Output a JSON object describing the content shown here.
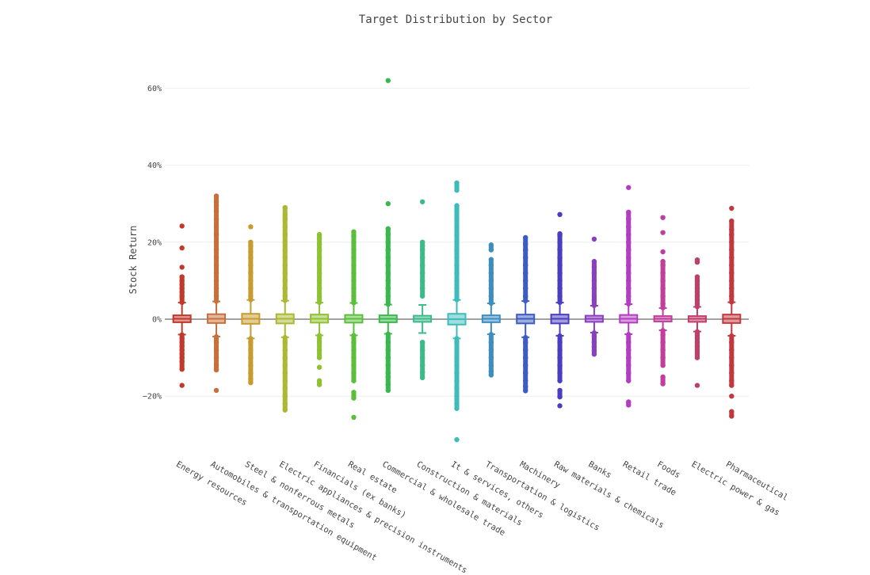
{
  "chart_data": {
    "type": "box",
    "title": "Target Distribution by Sector",
    "xlabel": "",
    "ylabel": "Stock Return",
    "ylim": [
      -35,
      67
    ],
    "y_ticks": [
      -20,
      0,
      20,
      40,
      60
    ],
    "y_tick_labels": [
      "−20%",
      "0%",
      "20%",
      "40%",
      "60%"
    ],
    "grid": true,
    "legend": "none",
    "categories": [
      "Energy resources",
      "Automobiles & transportation equipment",
      "Steel & nonferrous metals",
      "Electric appliances & precision instruments",
      "Financials (ex banks)",
      "Real estate",
      "Commercial & wholesale trade",
      "Construction & materials",
      "It & services, others",
      "Transportation & logistics",
      "Machinery",
      "Raw materials & chemicals",
      "Banks",
      "Retail trade",
      "Foods",
      "Electric power & gas",
      "Pharmaceutical"
    ],
    "colors": [
      "#c0392b",
      "#c8703b",
      "#c89b2e",
      "#aab832",
      "#8ec233",
      "#5cbf3c",
      "#39b84e",
      "#3dba8a",
      "#3ebcbc",
      "#3d8ec0",
      "#3e5cc0",
      "#4a3ec0",
      "#8a3ec0",
      "#b13ec0",
      "#c03e9c",
      "#c03e6a",
      "#c0393f"
    ],
    "boxes": [
      {
        "q1": -0.8,
        "median": 0.1,
        "q3": 1.0,
        "whisker_low": -4,
        "whisker_high": 4.3,
        "outliers_high": [
          6,
          7,
          8,
          9,
          10,
          11,
          13.5,
          18.5,
          24.2
        ],
        "outliers_low": [
          -5,
          -6,
          -7,
          -8,
          -9,
          -10,
          -11,
          -13,
          -17.2
        ]
      },
      {
        "q1": -1.0,
        "median": 0.1,
        "q3": 1.3,
        "whisker_low": -4.5,
        "whisker_high": 4.6,
        "outliers_high": [
          6,
          8,
          10,
          12,
          14,
          16,
          18,
          20,
          22,
          24,
          26,
          28,
          29.5,
          30.5,
          32
        ],
        "outliers_low": [
          -6,
          -8,
          -10,
          -12,
          -13.2,
          -18.5
        ]
      },
      {
        "q1": -1.2,
        "median": 0.1,
        "q3": 1.4,
        "whisker_low": -5,
        "whisker_high": 5,
        "outliers_high": [
          6,
          8,
          10,
          12,
          14,
          16,
          17.5,
          19,
          20,
          24
        ],
        "outliers_low": [
          -6,
          -8,
          -10,
          -12,
          -14,
          -15.5,
          -16.5
        ]
      },
      {
        "q1": -1.1,
        "median": 0.1,
        "q3": 1.3,
        "whisker_low": -4.7,
        "whisker_high": 4.8,
        "outliers_high": [
          6,
          8,
          10,
          12,
          14,
          16,
          18,
          20,
          22,
          24,
          26,
          27,
          29
        ],
        "outliers_low": [
          -6,
          -8,
          -10,
          -12,
          -14,
          -16,
          -18,
          -20,
          -22,
          -23.6
        ]
      },
      {
        "q1": -0.9,
        "median": 0.1,
        "q3": 1.2,
        "whisker_low": -4.2,
        "whisker_high": 4.3,
        "outliers_high": [
          6,
          8,
          10,
          12,
          14,
          16,
          18,
          19.5,
          21,
          22
        ],
        "outliers_low": [
          -6,
          -8,
          -10,
          -12.5,
          -16,
          -17
        ]
      },
      {
        "q1": -0.9,
        "median": 0.1,
        "q3": 1.1,
        "whisker_low": -4.2,
        "whisker_high": 4.2,
        "outliers_high": [
          6,
          8,
          10,
          12,
          14,
          16,
          18,
          20,
          21.5,
          22.7
        ],
        "outliers_low": [
          -6,
          -8,
          -10,
          -12,
          -14,
          -16,
          -19,
          -20.5,
          -25.5
        ]
      },
      {
        "q1": -0.8,
        "median": 0.1,
        "q3": 1.0,
        "whisker_low": -3.8,
        "whisker_high": 3.8,
        "outliers_high": [
          6,
          8,
          10,
          12,
          14,
          16,
          18,
          20,
          22,
          23.5,
          30,
          62
        ],
        "outliers_low": [
          -6,
          -8,
          -10,
          -12,
          -14,
          -15,
          -17,
          -18.5
        ]
      },
      {
        "q1": -0.7,
        "median": 0.1,
        "q3": 0.9,
        "whisker_low": -3.6,
        "whisker_high": 3.7,
        "outliers_high": [
          6,
          8,
          10,
          12,
          14,
          16,
          18,
          19,
          20,
          30.5
        ],
        "outliers_low": [
          -6,
          -8,
          -10,
          -12,
          -13.8,
          -15.2
        ]
      },
      {
        "q1": -1.4,
        "median": 0.0,
        "q3": 1.4,
        "whisker_low": -5,
        "whisker_high": 5,
        "outliers_high": [
          6,
          8,
          10,
          12,
          14,
          16,
          18,
          20,
          22,
          24,
          26,
          28,
          29.5,
          33.5,
          35.4
        ],
        "outliers_low": [
          -6,
          -8,
          -10,
          -12,
          -14,
          -16,
          -18,
          -20,
          -22,
          -23.2,
          -31.3
        ]
      },
      {
        "q1": -0.8,
        "median": 0.1,
        "q3": 1.0,
        "whisker_low": -3.9,
        "whisker_high": 4.1,
        "outliers_high": [
          6,
          8,
          10,
          12,
          14,
          15.5,
          18,
          19.3
        ],
        "outliers_low": [
          -6,
          -8,
          -10,
          -12,
          -13.6,
          -14.5
        ]
      },
      {
        "q1": -1.1,
        "median": 0.1,
        "q3": 1.2,
        "whisker_low": -4.7,
        "whisker_high": 4.7,
        "outliers_high": [
          6,
          8,
          10,
          12,
          14,
          16,
          18,
          19.5,
          21.2
        ],
        "outliers_low": [
          -6,
          -8,
          -10,
          -12,
          -14,
          -16,
          -17.5,
          -18.6
        ]
      },
      {
        "q1": -1.1,
        "median": 0.1,
        "q3": 1.2,
        "whisker_low": -4.3,
        "whisker_high": 4.3,
        "outliers_high": [
          6,
          8,
          10,
          12,
          14,
          16,
          18,
          20,
          21.7,
          22.2,
          27.2
        ],
        "outliers_low": [
          -6,
          -8,
          -10,
          -12,
          -14,
          -16,
          -18.5,
          -20.2,
          -22.5
        ]
      },
      {
        "q1": -0.7,
        "median": 0.1,
        "q3": 0.9,
        "whisker_low": -3.5,
        "whisker_high": 3.5,
        "outliers_high": [
          5,
          6,
          8,
          10,
          12,
          13.5,
          15,
          20.8
        ],
        "outliers_low": [
          -4.5,
          -6,
          -7.2,
          -8.2,
          -9.1
        ]
      },
      {
        "q1": -0.9,
        "median": 0.1,
        "q3": 1.1,
        "whisker_low": -3.9,
        "whisker_high": 3.9,
        "outliers_high": [
          6,
          8,
          10,
          12,
          14,
          16,
          18,
          20,
          22,
          24,
          26,
          27.8,
          34.2
        ],
        "outliers_low": [
          -6,
          -8,
          -10,
          -12,
          -14,
          -16,
          -21.5,
          -22.3
        ]
      },
      {
        "q1": -0.6,
        "median": 0.1,
        "q3": 0.8,
        "whisker_low": -2.9,
        "whisker_high": 2.9,
        "outliers_high": [
          4,
          6,
          8,
          10,
          12,
          14,
          15,
          17.5,
          22.5,
          26.4
        ],
        "outliers_low": [
          -4,
          -6,
          -8,
          -10,
          -12,
          -15,
          -16.8
        ]
      },
      {
        "q1": -0.7,
        "median": 0.1,
        "q3": 0.8,
        "whisker_low": -3.2,
        "whisker_high": 3.2,
        "outliers_high": [
          4,
          5,
          6,
          7,
          8,
          9,
          10,
          11,
          14.8,
          15.4
        ],
        "outliers_low": [
          -4,
          -5,
          -6,
          -7,
          -8,
          -9,
          -10,
          -17.2
        ]
      },
      {
        "q1": -1.0,
        "median": 0.1,
        "q3": 1.2,
        "whisker_low": -4.3,
        "whisker_high": 4.4,
        "outliers_high": [
          6,
          8,
          10,
          12,
          14,
          16,
          18,
          20,
          22,
          23.3,
          25.5,
          28.8
        ],
        "outliers_low": [
          -6,
          -8,
          -10,
          -12,
          -14,
          -16,
          -17.2,
          -20,
          -24,
          -25.2
        ]
      }
    ]
  }
}
